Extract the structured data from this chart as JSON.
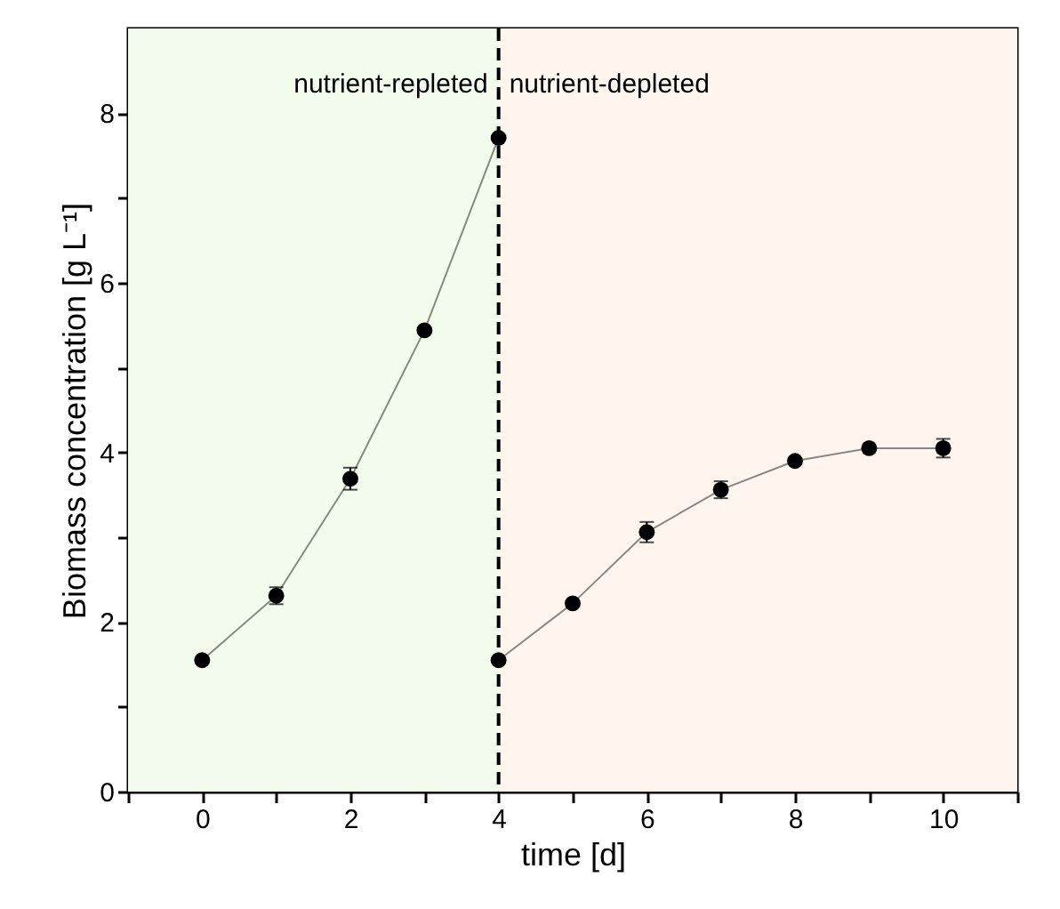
{
  "chart_data": {
    "type": "line",
    "xlabel": "time [d]",
    "ylabel": "Biomass concentration [g L⁻¹]",
    "xlim": [
      -1,
      11
    ],
    "ylim": [
      0,
      9
    ],
    "xticks": [
      {
        "value": -1,
        "label": null
      },
      0,
      {
        "value": 1,
        "label": null
      },
      2,
      {
        "value": 3,
        "label": null
      },
      4,
      {
        "value": 5,
        "label": null
      },
      6,
      {
        "value": 7,
        "label": null
      },
      8,
      {
        "value": 9,
        "label": null
      },
      10,
      {
        "value": 11,
        "label": null
      }
    ],
    "yticks": [
      0,
      {
        "value": 1,
        "label": null
      },
      2,
      {
        "value": 3,
        "label": null
      },
      4,
      {
        "value": 5,
        "label": null
      },
      6,
      {
        "value": 7,
        "label": null
      },
      8
    ],
    "series": [
      {
        "color": "#000000",
        "x": [
          0,
          1,
          2,
          3,
          4
        ],
        "values": [
          1.55,
          2.31,
          3.69,
          5.44,
          7.71
        ],
        "errors": [
          null,
          0.1,
          0.13,
          null,
          null
        ]
      },
      {
        "color": "#000000",
        "x": [
          4,
          5,
          6,
          7,
          8,
          9,
          10
        ],
        "values": [
          1.55,
          2.22,
          3.06,
          3.56,
          3.9,
          4.05,
          4.05
        ],
        "errors": [
          null,
          null,
          0.12,
          0.1,
          null,
          null,
          0.11
        ]
      }
    ],
    "bands": [
      {
        "axis": "x",
        "from": -1,
        "to": 4,
        "label": "nutrient-repleted",
        "color": "#f2fbec"
      },
      {
        "axis": "x",
        "from": 4,
        "to": 11,
        "label": "nutrient-depleted",
        "color": "#fdf5ee"
      }
    ],
    "ref_lines": [
      {
        "axis": "x",
        "value": 4,
        "label": null,
        "line_style": "dashed",
        "color": "#000000"
      }
    ],
    "marker": "circle",
    "line_style": "solid",
    "grid": false
  }
}
